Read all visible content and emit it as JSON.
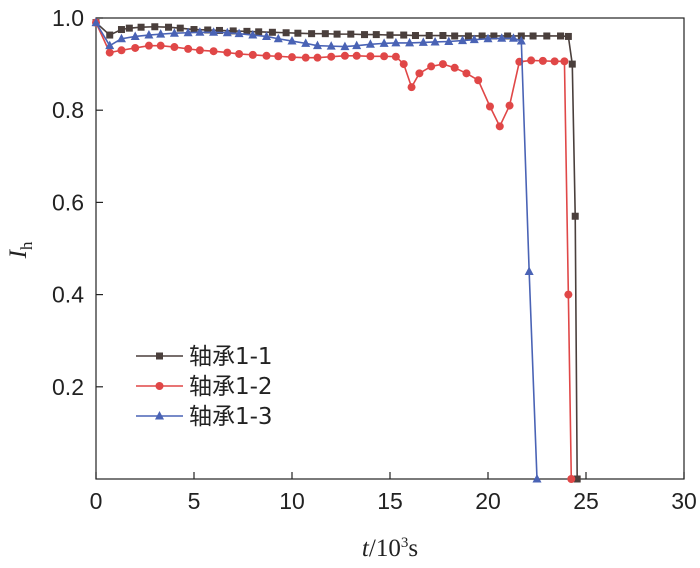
{
  "chart_data": {
    "type": "line",
    "xlabel": "t/10³s",
    "ylabel": "Ih",
    "xlim": [
      0,
      30
    ],
    "ylim": [
      0,
      1.0
    ],
    "x_ticks": [
      0,
      5,
      10,
      15,
      20,
      25,
      30
    ],
    "y_ticks": [
      0.2,
      0.4,
      0.6,
      0.8,
      1.0
    ],
    "y_tick_labels": [
      "0.2",
      "0.4",
      "0.6",
      "0.8",
      "1.0"
    ],
    "grid": false,
    "legend_position": "bottom-left",
    "series": [
      {
        "name": "轴承1-1",
        "color": "#4a3f3c",
        "marker": "square",
        "x": [
          0,
          0.7,
          1.3,
          1.7,
          2.3,
          3,
          3.7,
          4.3,
          5,
          5.7,
          6.3,
          7,
          7.7,
          8.3,
          9,
          9.7,
          10.3,
          11,
          11.7,
          12.3,
          13,
          13.7,
          14.3,
          15,
          15.7,
          16.3,
          17,
          17.7,
          18.3,
          19,
          19.7,
          20.3,
          21,
          21.7,
          22.3,
          23,
          23.7,
          24.1,
          24.3,
          24.45,
          24.55
        ],
        "y": [
          0.99,
          0.963,
          0.975,
          0.978,
          0.98,
          0.981,
          0.98,
          0.978,
          0.975,
          0.974,
          0.973,
          0.972,
          0.971,
          0.97,
          0.969,
          0.968,
          0.967,
          0.966,
          0.966,
          0.965,
          0.965,
          0.964,
          0.964,
          0.963,
          0.963,
          0.962,
          0.962,
          0.962,
          0.961,
          0.961,
          0.961,
          0.961,
          0.961,
          0.961,
          0.961,
          0.961,
          0.961,
          0.96,
          0.9,
          0.57,
          0.0
        ]
      },
      {
        "name": "轴承1-2",
        "color": "#e04747",
        "marker": "circle",
        "x": [
          0,
          0.7,
          1.3,
          2,
          2.7,
          3.3,
          4,
          4.7,
          5.3,
          6,
          6.7,
          7.3,
          8,
          8.7,
          9.3,
          10,
          10.7,
          11.3,
          12,
          12.7,
          13.3,
          14,
          14.7,
          15.3,
          15.7,
          16.1,
          16.5,
          17.1,
          17.7,
          18.3,
          18.9,
          19.5,
          20.1,
          20.6,
          21.1,
          21.6,
          22.2,
          22.8,
          23.4,
          23.9,
          24.1,
          24.25
        ],
        "y": [
          0.99,
          0.925,
          0.93,
          0.935,
          0.94,
          0.94,
          0.937,
          0.933,
          0.93,
          0.928,
          0.925,
          0.922,
          0.92,
          0.918,
          0.917,
          0.915,
          0.914,
          0.914,
          0.916,
          0.918,
          0.918,
          0.917,
          0.917,
          0.916,
          0.9,
          0.85,
          0.88,
          0.895,
          0.9,
          0.892,
          0.88,
          0.865,
          0.808,
          0.765,
          0.81,
          0.905,
          0.908,
          0.907,
          0.906,
          0.906,
          0.4,
          0.0
        ]
      },
      {
        "name": "轴承1-3",
        "color": "#4a63b5",
        "marker": "triangle",
        "x": [
          0,
          0.7,
          1.3,
          2,
          2.7,
          3.3,
          4,
          4.7,
          5.3,
          6,
          6.7,
          7.3,
          8,
          8.7,
          9.3,
          10,
          10.7,
          11.3,
          12,
          12.7,
          13.3,
          14,
          14.7,
          15.3,
          16,
          16.7,
          17.3,
          18,
          18.7,
          19.3,
          20,
          20.7,
          21.3,
          21.7,
          22.1,
          22.5
        ],
        "y": [
          0.99,
          0.94,
          0.955,
          0.96,
          0.963,
          0.965,
          0.967,
          0.968,
          0.969,
          0.969,
          0.968,
          0.966,
          0.963,
          0.96,
          0.955,
          0.95,
          0.945,
          0.94,
          0.939,
          0.938,
          0.94,
          0.943,
          0.945,
          0.946,
          0.946,
          0.947,
          0.948,
          0.949,
          0.951,
          0.953,
          0.955,
          0.956,
          0.956,
          0.95,
          0.45,
          0.0
        ]
      }
    ]
  }
}
